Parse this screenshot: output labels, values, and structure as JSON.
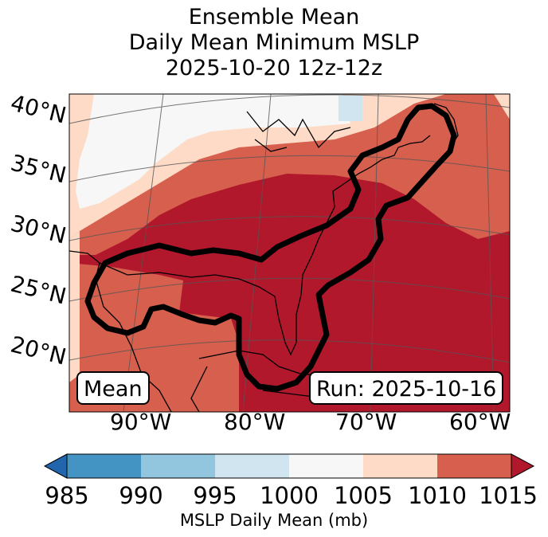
{
  "title": {
    "line1": "Ensemble Mean",
    "line2": "Daily Mean Minimum MSLP",
    "line3": "2025-10-20 12z-12z"
  },
  "map": {
    "lat_labels": [
      "40°N",
      "35°N",
      "30°N",
      "25°N",
      "20°N"
    ],
    "lon_labels": [
      "90°W",
      "80°W",
      "70°W",
      "60°W"
    ],
    "mean_box": "Mean",
    "run_box": "Run: 2025-10-16",
    "region": "Eastern United States, Gulf of Mexico and western Atlantic",
    "contour": "thick black outline of low-pressure region"
  },
  "colorbar": {
    "label": "MSLP Daily Mean (mb)",
    "ticks": [
      "985",
      "990",
      "995",
      "1000",
      "1005",
      "1010",
      "1015"
    ],
    "colors": {
      "under": "#2166ac",
      "b985_990": "#4393c3",
      "b990_995": "#92c5de",
      "b995_1000": "#d1e5f0",
      "b1000_1005": "#f7f7f7",
      "b1005_1010": "#fddbc7",
      "b1010_1015": "#d6604d",
      "over": "#b2182b"
    }
  }
}
